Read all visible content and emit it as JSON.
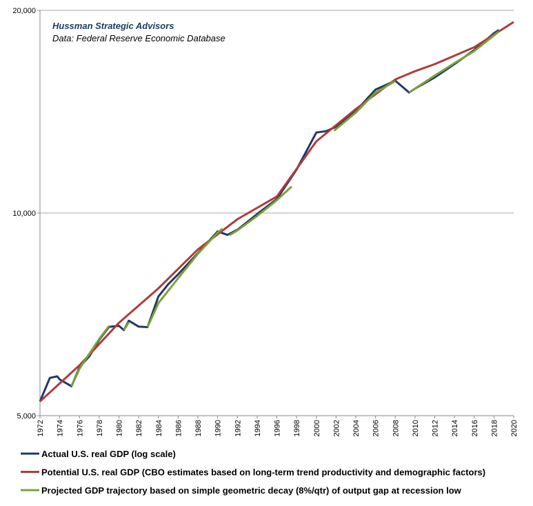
{
  "chart_data": {
    "type": "line",
    "title": "Hussman Strategic Advisors",
    "subtitle": "Data: Federal Reserve Economic Database",
    "log_y": true,
    "grid": true,
    "xlim": [
      1972,
      2020
    ],
    "xticks": [
      1972,
      1974,
      1976,
      1978,
      1980,
      1982,
      1984,
      1986,
      1988,
      1990,
      1992,
      1994,
      1996,
      1998,
      2000,
      2002,
      2004,
      2006,
      2008,
      2010,
      2012,
      2014,
      2016,
      2018,
      2020
    ],
    "ylim": [
      5000,
      20000
    ],
    "yticks": [
      {
        "value": 5000,
        "label": "5,000"
      },
      {
        "value": 10000,
        "label": "10,000"
      },
      {
        "value": 20000,
        "label": "20,000"
      }
    ],
    "series": [
      {
        "name": "Actual U.S. real GDP (log scale)",
        "color": "#1f3864",
        "x": [
          1972,
          1973,
          1973.75,
          1974,
          1975.2,
          1976,
          1977,
          1978,
          1979,
          1980,
          1980.5,
          1981,
          1982,
          1982.9,
          1984,
          1985,
          1986,
          1988,
          1990,
          1991,
          1992,
          1994,
          1996,
          1998,
          2000,
          2001,
          2002,
          2004,
          2006,
          2008,
          2009.4,
          2010,
          2012,
          2014,
          2016,
          2018,
          2018.5
        ],
        "values": [
          5250,
          5690,
          5720,
          5660,
          5530,
          5900,
          6125,
          6480,
          6775,
          6800,
          6700,
          6920,
          6780,
          6770,
          7520,
          7840,
          8110,
          8720,
          9390,
          9280,
          9440,
          9965,
          10490,
          11600,
          13170,
          13230,
          13430,
          14180,
          15250,
          15720,
          15100,
          15300,
          15900,
          16640,
          17460,
          18500,
          18700
        ]
      },
      {
        "name": "Potential U.S. real GDP (CBO estimates based on long-term trend productivity and demographic factors)",
        "color": "#b03a3a",
        "x": [
          1972,
          1976,
          1980,
          1984,
          1988,
          1992,
          1996,
          2000,
          2004,
          2008,
          2010,
          2012,
          2016,
          2020
        ],
        "values": [
          5250,
          5940,
          6870,
          7730,
          8830,
          9790,
          10580,
          12780,
          14270,
          15790,
          16240,
          16640,
          17630,
          19220
        ]
      },
      {
        "name": "Projected GDP trajectory based on simple geometric decay (8%/qtr) of output gap at recession low",
        "color": "#7aa23a",
        "x": [
          1975.2,
          1976,
          1977,
          1978,
          1979,
          null,
          1980.5,
          1981,
          null,
          1982.9,
          1984,
          1986,
          1988,
          1990,
          1990.5,
          null,
          1991.2,
          1992,
          1994,
          1996,
          1997.5,
          null,
          2001.8,
          2004,
          2006,
          2008,
          null,
          2009.4,
          2012,
          2014,
          2016,
          2018.5
        ],
        "values": [
          5530,
          5870,
          6180,
          6500,
          6800,
          null,
          6700,
          6880,
          null,
          6770,
          7350,
          8000,
          8700,
          9350,
          9480,
          null,
          9270,
          9420,
          9900,
          10450,
          10950,
          null,
          13250,
          14100,
          15100,
          15700,
          null,
          15100,
          16000,
          16700,
          17400,
          18600
        ]
      }
    ]
  }
}
